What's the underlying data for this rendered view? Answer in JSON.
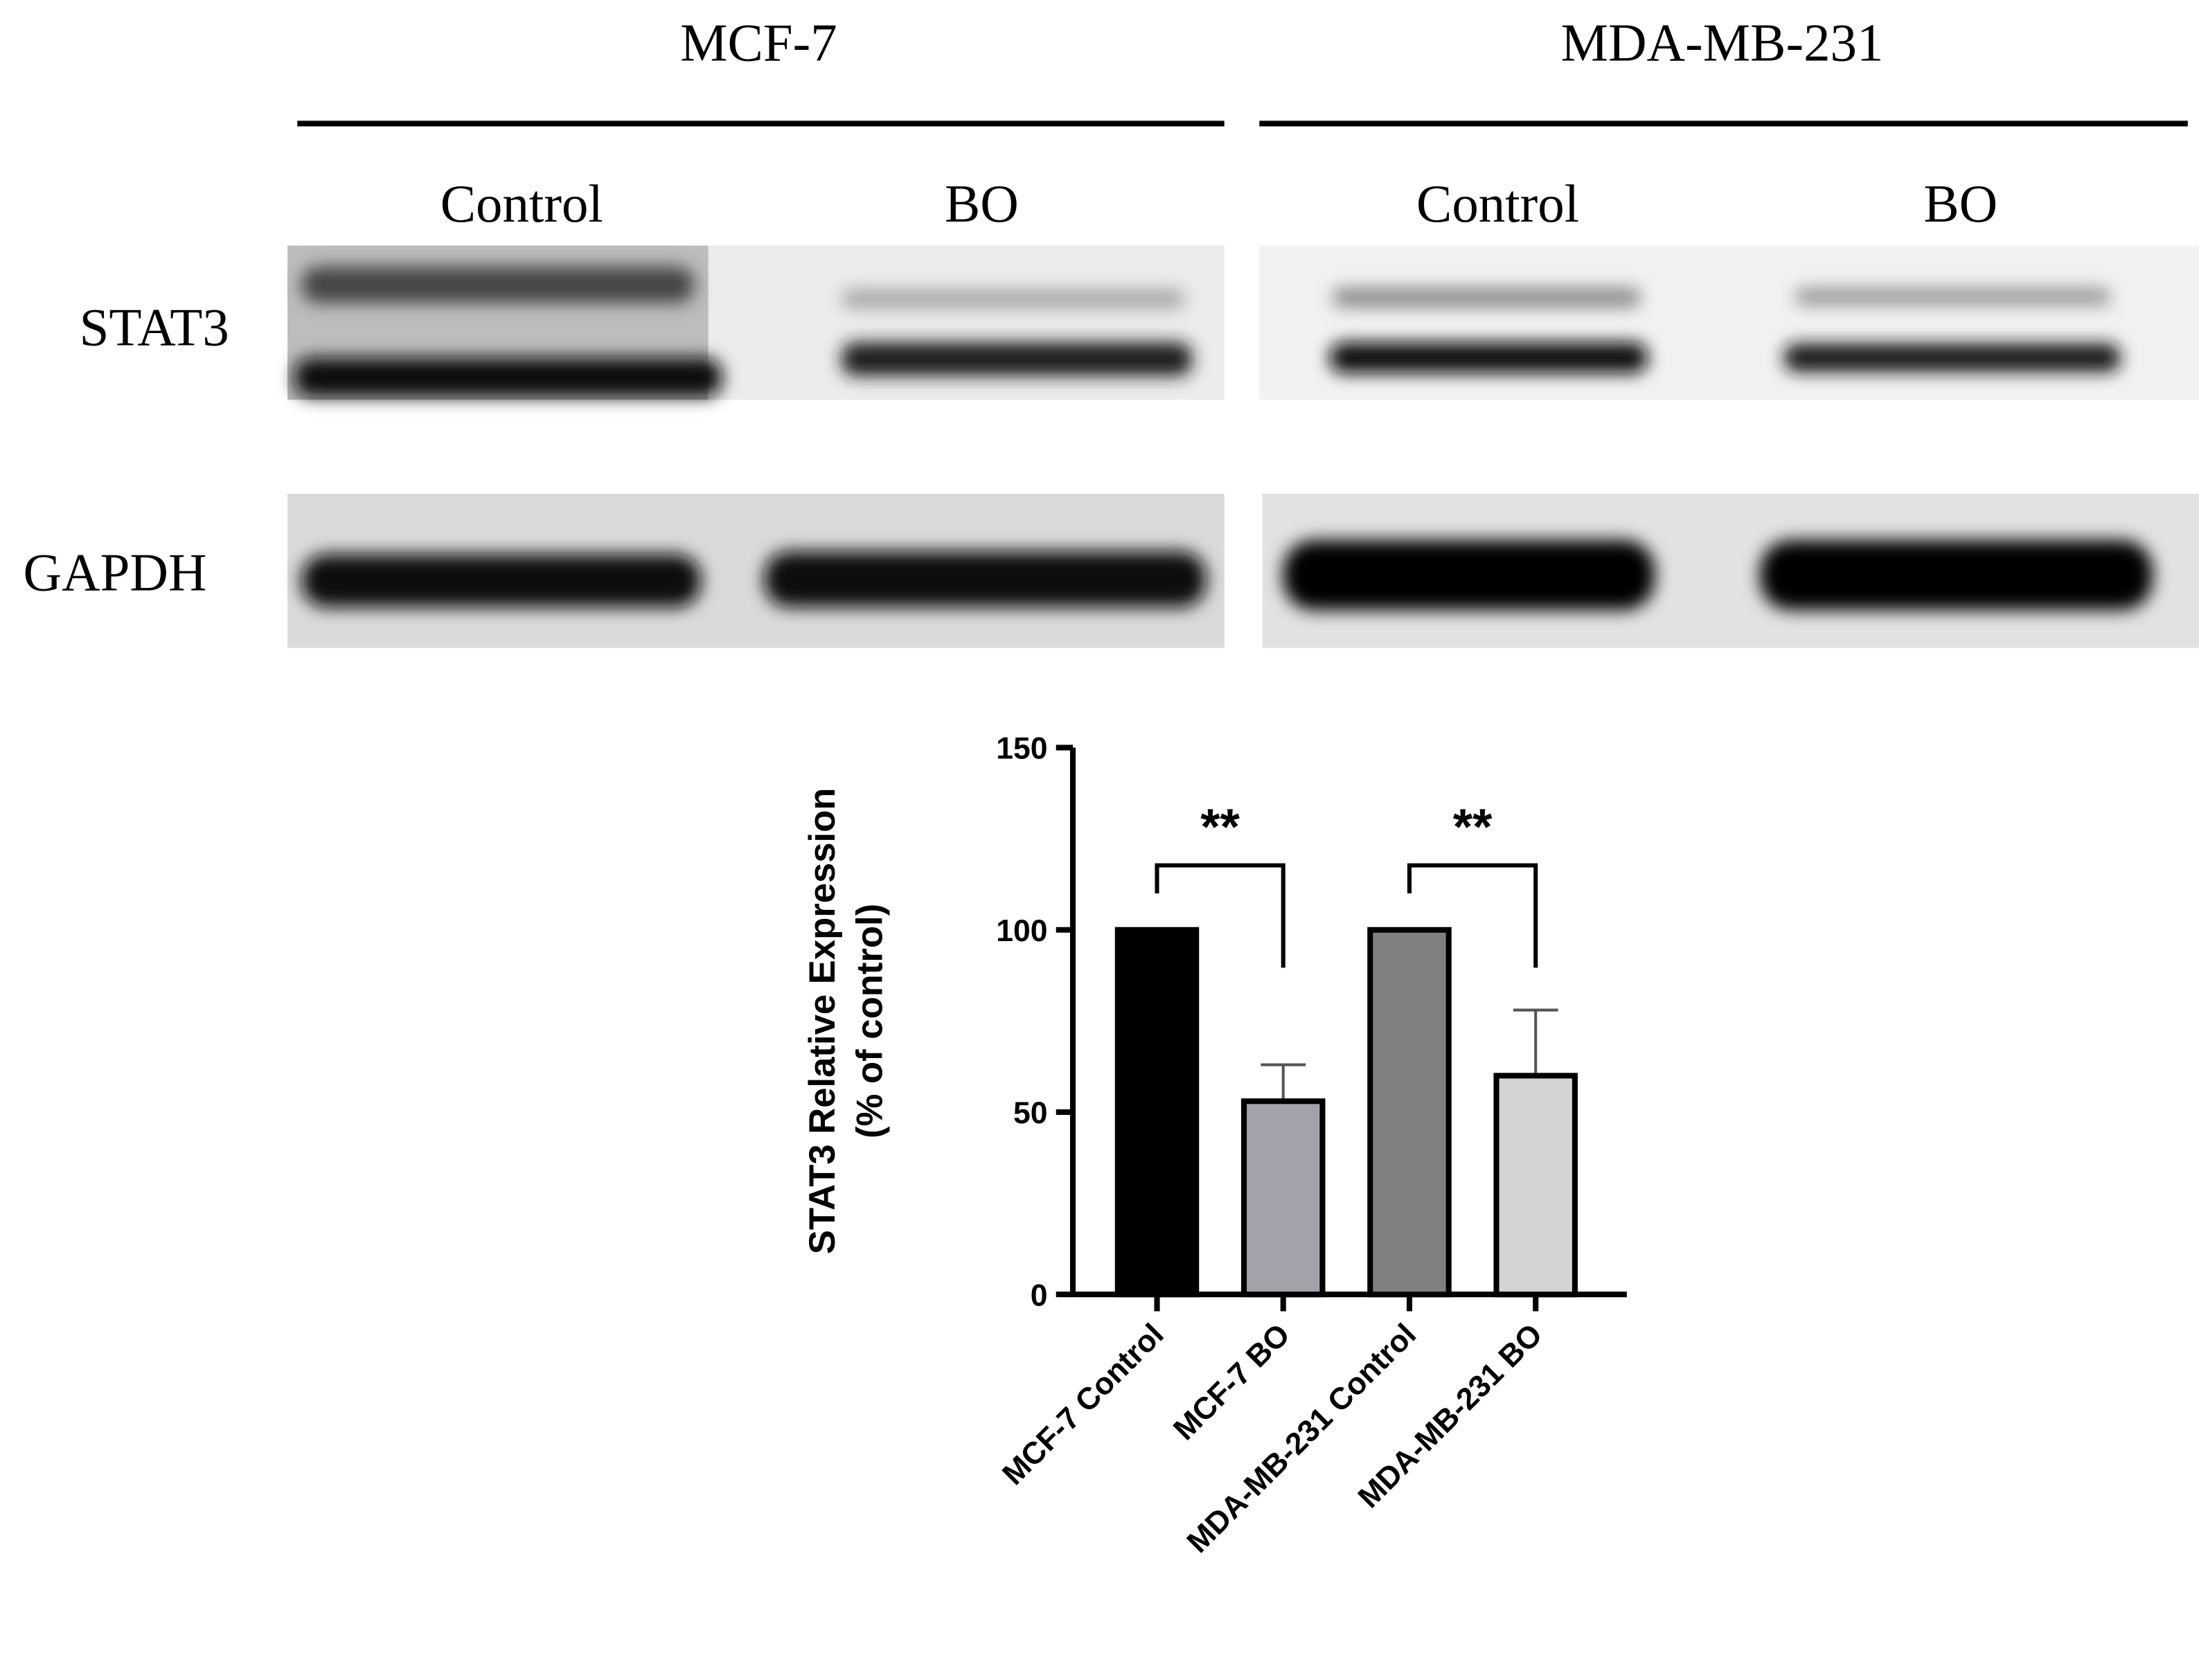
{
  "blot": {
    "cell_lines": [
      "MCF-7",
      "MDA-MB-231"
    ],
    "conditions": [
      "Control",
      "BO",
      "Control",
      "BO"
    ],
    "proteins": [
      "STAT3",
      "GAPDH"
    ]
  },
  "chart_data": {
    "type": "bar",
    "ylabel": [
      "STAT3 Relative Expression",
      "(% of control)"
    ],
    "categories": [
      "MCF-7 Control",
      "MCF-7 BO",
      "MDA-MB-231 Control",
      "MDA-MB-231 BO"
    ],
    "values": [
      100,
      53,
      100,
      60
    ],
    "errors": [
      0,
      10,
      0,
      18
    ],
    "colors": [
      "#000000",
      "#a2a2aa",
      "#808080",
      "#d4d4d4"
    ],
    "annotations": [
      "**",
      "**"
    ],
    "ylim": [
      0,
      150
    ],
    "yticks": [
      0,
      50,
      100,
      150
    ]
  }
}
